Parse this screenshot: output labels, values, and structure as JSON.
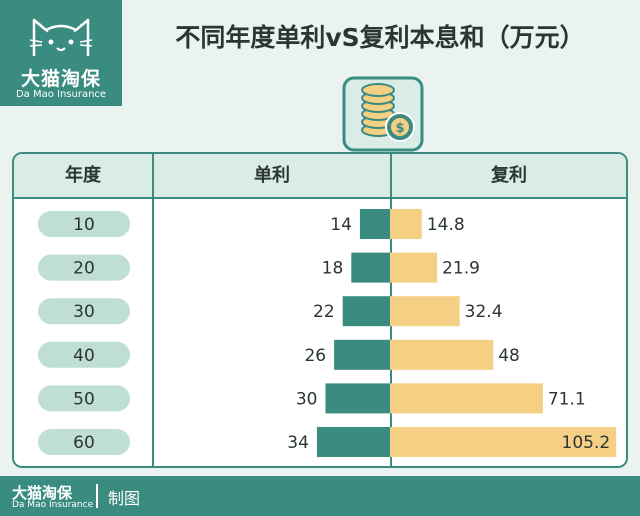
{
  "brand": {
    "name_cn": "大猫淘保",
    "name_en": "Da Mao Insurance"
  },
  "title": "不同年度单利vS复利本息和（万元）",
  "footer": {
    "name_cn": "大猫淘保",
    "name_en": "Da Mao Insurance",
    "made_by": "制图"
  },
  "colors": {
    "teal": "#3a8c81",
    "gold": "#f5cf83",
    "pill": "#bfded6",
    "header_bg": "#d9ece6"
  },
  "icons": [
    "cat-logo-icon",
    "coin-stack-icon",
    "dollar-coin-icon"
  ],
  "chart_data": {
    "type": "bar",
    "title": "不同年度单利vS复利本息和（万元）",
    "columns": [
      "年度",
      "单利",
      "复利"
    ],
    "categories": [
      "10",
      "20",
      "30",
      "40",
      "50",
      "60"
    ],
    "series": [
      {
        "name": "单利",
        "values": [
          14,
          18,
          22,
          26,
          30,
          34
        ]
      },
      {
        "name": "复利",
        "values": [
          14.8,
          21.9,
          32.4,
          48,
          71.1,
          105.2
        ]
      }
    ],
    "value_labels": {
      "simple": [
        "14",
        "18",
        "22",
        "26",
        "30",
        "34"
      ],
      "compound": [
        "14.8",
        "21.9",
        "32.4",
        "48",
        "71.1",
        "105.2"
      ]
    }
  }
}
